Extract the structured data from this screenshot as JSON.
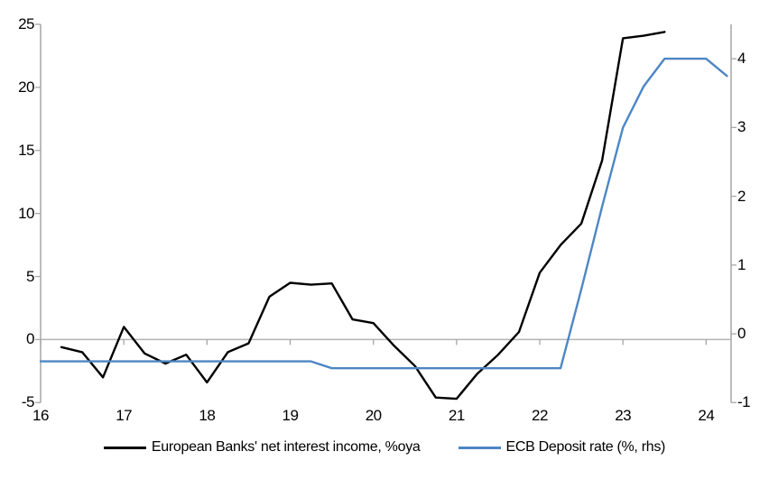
{
  "chart_data": {
    "type": "line",
    "title": "",
    "x_axis": {
      "tick_labels": [
        "16",
        "17",
        "18",
        "19",
        "20",
        "21",
        "22",
        "23",
        "24"
      ],
      "tick_values": [
        16,
        17,
        18,
        19,
        20,
        21,
        22,
        23,
        24
      ],
      "range": [
        16,
        24.3
      ]
    },
    "y_left": {
      "tick_labels": [
        "25",
        "20",
        "15",
        "10",
        "5",
        "0",
        "-5"
      ],
      "tick_values": [
        25,
        20,
        15,
        10,
        5,
        0,
        -5
      ],
      "range": [
        -5,
        25
      ]
    },
    "y_right": {
      "tick_labels": [
        "4",
        "3",
        "2",
        "1",
        "0",
        "-1"
      ],
      "tick_values": [
        4,
        3,
        2,
        1,
        0,
        -1
      ],
      "range": [
        -1,
        4.5
      ]
    },
    "grid": "zero-line-only",
    "legend_position": "bottom",
    "series": [
      {
        "name": "European Banks' net interest income, %oya",
        "axis": "left",
        "color": "#000000",
        "x": [
          16.25,
          16.5,
          16.75,
          17,
          17.25,
          17.5,
          17.75,
          18,
          18.25,
          18.5,
          18.75,
          19,
          19.25,
          19.5,
          19.75,
          20,
          20.25,
          20.5,
          20.75,
          21,
          21.25,
          21.5,
          21.75,
          22,
          22.25,
          22.5,
          22.75,
          23,
          23.25,
          23.5
        ],
        "values": [
          -0.6,
          -1.0,
          -3.0,
          1.0,
          -1.1,
          -1.9,
          -1.2,
          -3.4,
          -1.0,
          -0.3,
          3.4,
          4.5,
          4.35,
          4.45,
          1.6,
          1.3,
          -0.5,
          -2.1,
          -4.6,
          -4.7,
          -2.7,
          -1.2,
          0.6,
          5.3,
          7.5,
          9.2,
          14.2,
          23.9,
          24.1,
          24.4
        ]
      },
      {
        "name": "ECB Deposit rate (%, rhs)",
        "axis": "right",
        "color": "#4D86C4",
        "x": [
          16,
          16.25,
          16.5,
          16.75,
          17,
          17.25,
          17.5,
          17.75,
          18,
          18.25,
          18.5,
          18.75,
          19,
          19.25,
          19.5,
          19.75,
          20,
          20.25,
          20.5,
          20.75,
          21,
          21.25,
          21.5,
          21.75,
          22,
          22.25,
          22.5,
          22.75,
          23,
          23.25,
          23.5,
          23.75,
          24,
          24.25
        ],
        "values": [
          -0.4,
          -0.4,
          -0.4,
          -0.4,
          -0.4,
          -0.4,
          -0.4,
          -0.4,
          -0.4,
          -0.4,
          -0.4,
          -0.4,
          -0.4,
          -0.4,
          -0.5,
          -0.5,
          -0.5,
          -0.5,
          -0.5,
          -0.5,
          -0.5,
          -0.5,
          -0.5,
          -0.5,
          -0.5,
          -0.5,
          0.65,
          1.85,
          3.0,
          3.6,
          4.0,
          4.0,
          4.0,
          3.75
        ]
      }
    ]
  },
  "colors": {
    "axis": "#A6A6A6",
    "zero_line": "#B3B3B3",
    "text": "#000000",
    "background": "#FFFFFF"
  }
}
